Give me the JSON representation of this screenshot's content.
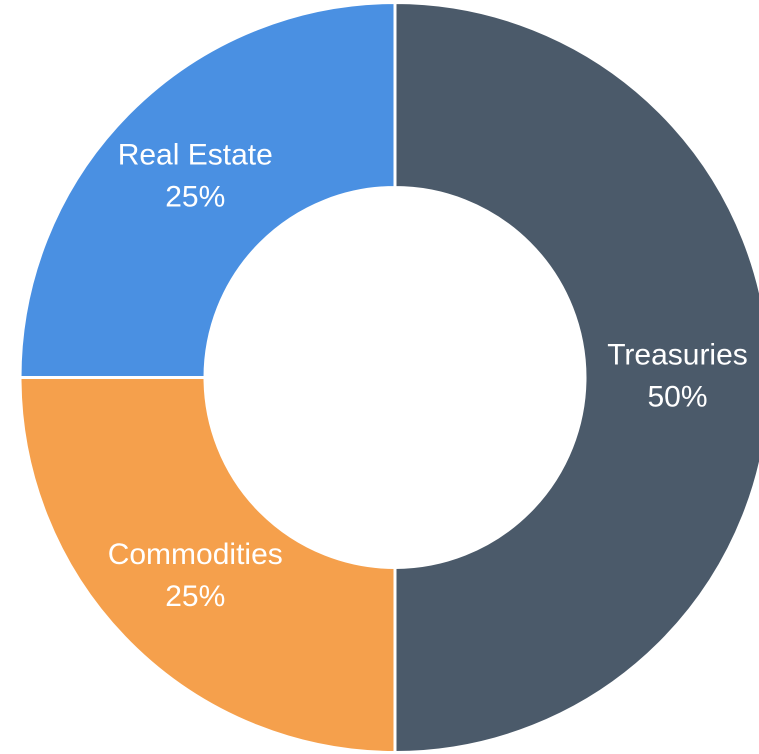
{
  "chart_data": {
    "type": "donut",
    "categories": [
      "Treasuries",
      "Commodities",
      "Real Estate"
    ],
    "values": [
      50,
      25,
      25
    ],
    "value_labels": [
      "50%",
      "25%",
      "25%"
    ],
    "colors": [
      "#4b5a6a",
      "#f5a04c",
      "#4a90e2"
    ]
  }
}
